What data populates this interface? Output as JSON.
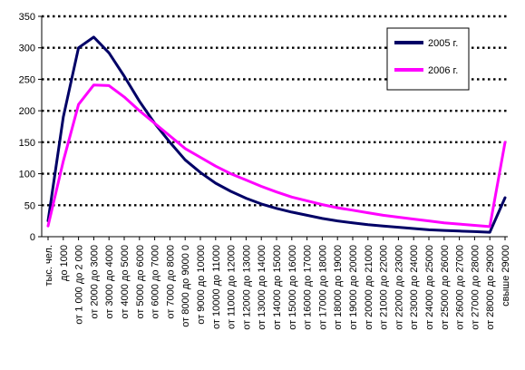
{
  "chart_data": {
    "type": "line",
    "title": "",
    "xlabel": "",
    "ylabel": "",
    "ylim": [
      0,
      350
    ],
    "yticks": [
      0,
      50,
      100,
      150,
      200,
      250,
      300,
      350
    ],
    "grid": true,
    "legend_position": "top-right",
    "categories": [
      "тыс. чел.",
      "до 1000",
      "от 1 000 до 2 000",
      "от 2000 до 3000",
      "от 3000 до 4000",
      "от 4000 до 5000",
      "от 5000 до 6000",
      "от 6000 до 7000",
      "от 7000 до 8000",
      "от 8000 до 9000 0",
      "от 9000 до 10000",
      "от 10000 до 11000",
      "от 11000 до 12000",
      "от 12000 до 13000",
      "от 13000 до 14000",
      "от 14000 до 15000",
      "от 15000 до 16000",
      "от 16000 до 17000",
      "от 17000 до 18000",
      "от 18000 до 19000",
      "от 19000 до 20000",
      "от 20000 до 21000",
      "от 21000 до 22000",
      "от 22000 до 23000",
      "от 23000 до 24000",
      "от 24000 до 25000",
      "от 25000 до 26000",
      "от 26000 до 27000",
      "от 27000 до 28000",
      "от 28000 до 29000",
      "свыше 29000"
    ],
    "series": [
      {
        "name": "2005 г.",
        "color": "#000066",
        "values": [
          25,
          190,
          300,
          317,
          292,
          255,
          215,
          180,
          150,
          122,
          102,
          85,
          72,
          61,
          52,
          45,
          39,
          34,
          29,
          25,
          22,
          19,
          17,
          15,
          13,
          11,
          10,
          9,
          8,
          7,
          62
        ]
      },
      {
        "name": "2006 г.",
        "color": "#ff00ff",
        "values": [
          17,
          120,
          210,
          241,
          240,
          222,
          200,
          180,
          160,
          140,
          126,
          112,
          100,
          90,
          80,
          71,
          63,
          57,
          51,
          46,
          42,
          38,
          34,
          31,
          28,
          25,
          22,
          20,
          18,
          16,
          150
        ]
      }
    ]
  }
}
